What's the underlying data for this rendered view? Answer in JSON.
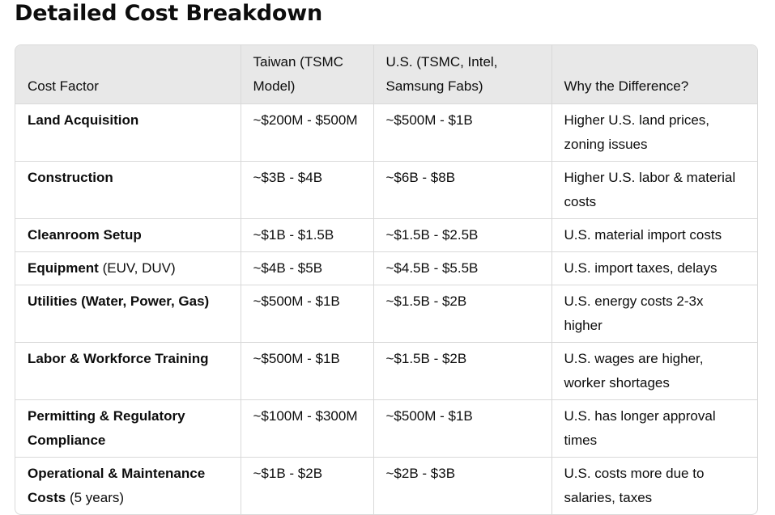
{
  "title": "Detailed Cost Breakdown",
  "table": {
    "headers": [
      "Cost Factor",
      "Taiwan (TSMC Model)",
      "U.S. (TSMC, Intel, Samsung Fabs)",
      "Why the Difference?"
    ],
    "rows": [
      {
        "factor": "Land Acquisition",
        "note": "",
        "taiwan": "~$200M - $500M",
        "us": "~$500M - $1B",
        "why": "Higher U.S. land prices, zoning issues"
      },
      {
        "factor": "Construction",
        "note": "",
        "taiwan": "~$3B - $4B",
        "us": "~$6B - $8B",
        "why": "Higher U.S. labor & material costs"
      },
      {
        "factor": "Cleanroom Setup",
        "note": "",
        "taiwan": "~$1B - $1.5B",
        "us": "~$1.5B - $2.5B",
        "why": "U.S. material import costs"
      },
      {
        "factor": "Equipment",
        "note": " (EUV, DUV)",
        "taiwan": "~$4B - $5B",
        "us": "~$4.5B - $5.5B",
        "why": "U.S. import taxes, delays"
      },
      {
        "factor": "Utilities (Water, Power, Gas)",
        "note": "",
        "taiwan": "~$500M - $1B",
        "us": "~$1.5B - $2B",
        "why": "U.S. energy costs 2-3x higher"
      },
      {
        "factor": "Labor & Workforce Training",
        "note": "",
        "taiwan": "~$500M - $1B",
        "us": "~$1.5B - $2B",
        "why": "U.S. wages are higher, worker shortages"
      },
      {
        "factor": "Permitting & Regulatory Compliance",
        "note": "",
        "taiwan": "~$100M - $300M",
        "us": "~$500M - $1B",
        "why": "U.S. has longer approval times"
      },
      {
        "factor": "Operational & Maintenance Costs",
        "note": " (5 years)",
        "taiwan": "~$1B - $2B",
        "us": "~$2B - $3B",
        "why": "U.S. costs more due to salaries, taxes"
      }
    ]
  }
}
